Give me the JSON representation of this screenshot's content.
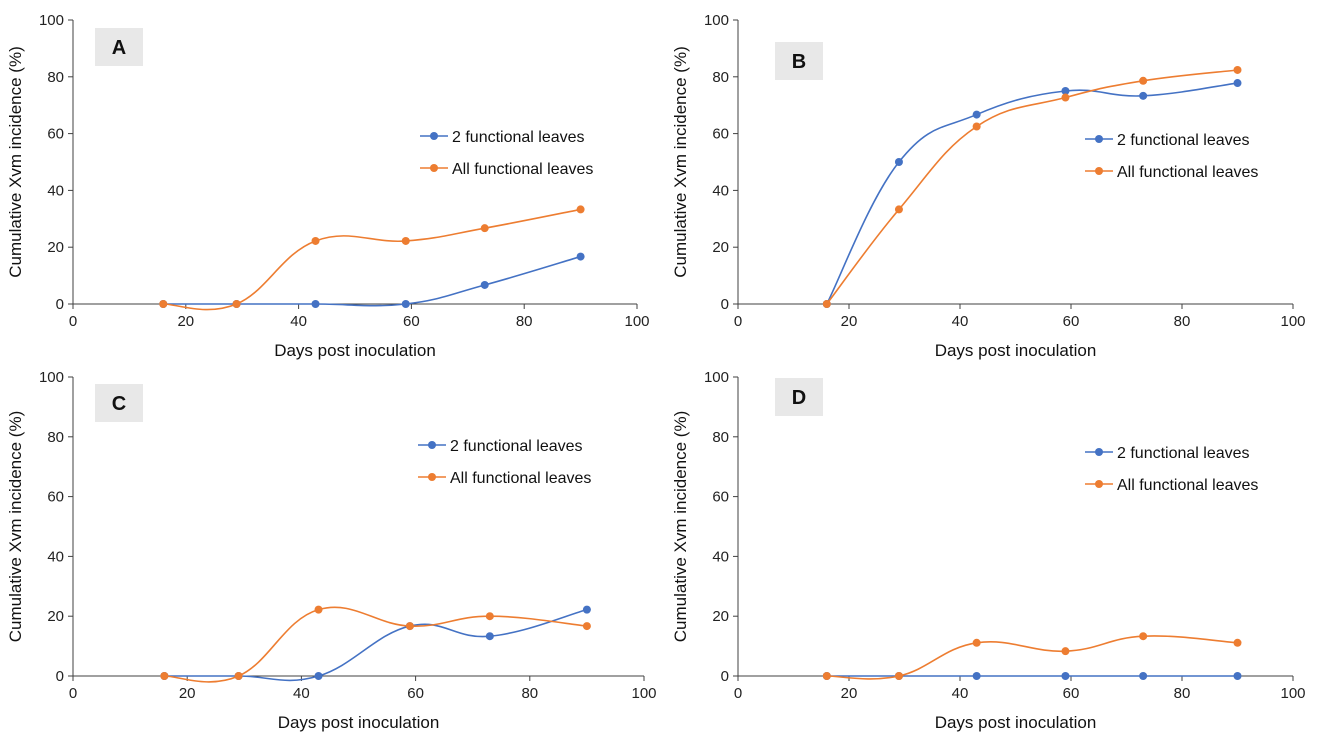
{
  "colors": {
    "blue": "#4472c4",
    "orange": "#ed7d31",
    "label_box": "#e8e8e8",
    "axis": "#404040"
  },
  "chart_data": [
    {
      "type": "line",
      "panel": "A",
      "xlabel": "Days post inoculation",
      "ylabel": "Cumulative Xvm incidence (%)",
      "xlim": [
        0,
        100
      ],
      "ylim": [
        0,
        100
      ],
      "xticks": [
        "0",
        "20",
        "40",
        "60",
        "80",
        "100"
      ],
      "yticks": [
        "0",
        "20",
        "40",
        "60",
        "80",
        "100"
      ],
      "legend": "right",
      "x": [
        16,
        29,
        43,
        59,
        73,
        90
      ],
      "series": [
        {
          "name": "2 functional leaves",
          "color": "#4472c4",
          "values": [
            0,
            0,
            0,
            0,
            6.7,
            16.7
          ]
        },
        {
          "name": "All functional leaves",
          "color": "#ed7d31",
          "values": [
            0,
            0,
            22.2,
            22.2,
            26.7,
            33.3
          ]
        }
      ]
    },
    {
      "type": "line",
      "panel": "B",
      "xlabel": "Days post inoculation",
      "ylabel": "Cumulative Xvm incidence (%)",
      "xlim": [
        0,
        100
      ],
      "ylim": [
        0,
        100
      ],
      "xticks": [
        "0",
        "20",
        "40",
        "60",
        "80",
        "100"
      ],
      "yticks": [
        "0",
        "20",
        "40",
        "60",
        "80",
        "100"
      ],
      "legend": "right",
      "x": [
        16,
        29,
        43,
        59,
        73,
        90
      ],
      "series": [
        {
          "name": "2 functional leaves",
          "color": "#4472c4",
          "values": [
            0,
            50,
            66.7,
            75,
            73.3,
            77.8
          ]
        },
        {
          "name": "All functional leaves",
          "color": "#ed7d31",
          "values": [
            0,
            33.3,
            62.5,
            72.7,
            78.6,
            82.4
          ]
        }
      ]
    },
    {
      "type": "line",
      "panel": "C",
      "xlabel": "Days post inoculation",
      "ylabel": "Cumulative Xvm incidence (%)",
      "xlim": [
        0,
        100
      ],
      "ylim": [
        0,
        100
      ],
      "xticks": [
        "0",
        "20",
        "40",
        "60",
        "80",
        "100"
      ],
      "yticks": [
        "0",
        "20",
        "40",
        "60",
        "80",
        "100"
      ],
      "legend": "right",
      "x": [
        16,
        29,
        43,
        59,
        73,
        90
      ],
      "series": [
        {
          "name": "2 functional leaves",
          "color": "#4472c4",
          "values": [
            0,
            0,
            0,
            16.7,
            13.3,
            22.2
          ]
        },
        {
          "name": "All functional leaves",
          "color": "#ed7d31",
          "values": [
            0,
            0,
            22.2,
            16.7,
            20,
            16.7
          ]
        }
      ]
    },
    {
      "type": "line",
      "panel": "D",
      "xlabel": "Days post inoculation",
      "ylabel": "Cumulative Xvm incidence (%)",
      "xlim": [
        0,
        100
      ],
      "ylim": [
        0,
        100
      ],
      "xticks": [
        "0",
        "20",
        "40",
        "60",
        "80",
        "100"
      ],
      "yticks": [
        "0",
        "20",
        "40",
        "60",
        "80",
        "100"
      ],
      "legend": "right",
      "x": [
        16,
        29,
        43,
        59,
        73,
        90
      ],
      "series": [
        {
          "name": "2 functional leaves",
          "color": "#4472c4",
          "values": [
            0,
            0,
            0,
            0,
            0,
            0
          ]
        },
        {
          "name": "All functional leaves",
          "color": "#ed7d31",
          "values": [
            0,
            0,
            11.1,
            8.3,
            13.3,
            11.1
          ]
        }
      ]
    }
  ]
}
